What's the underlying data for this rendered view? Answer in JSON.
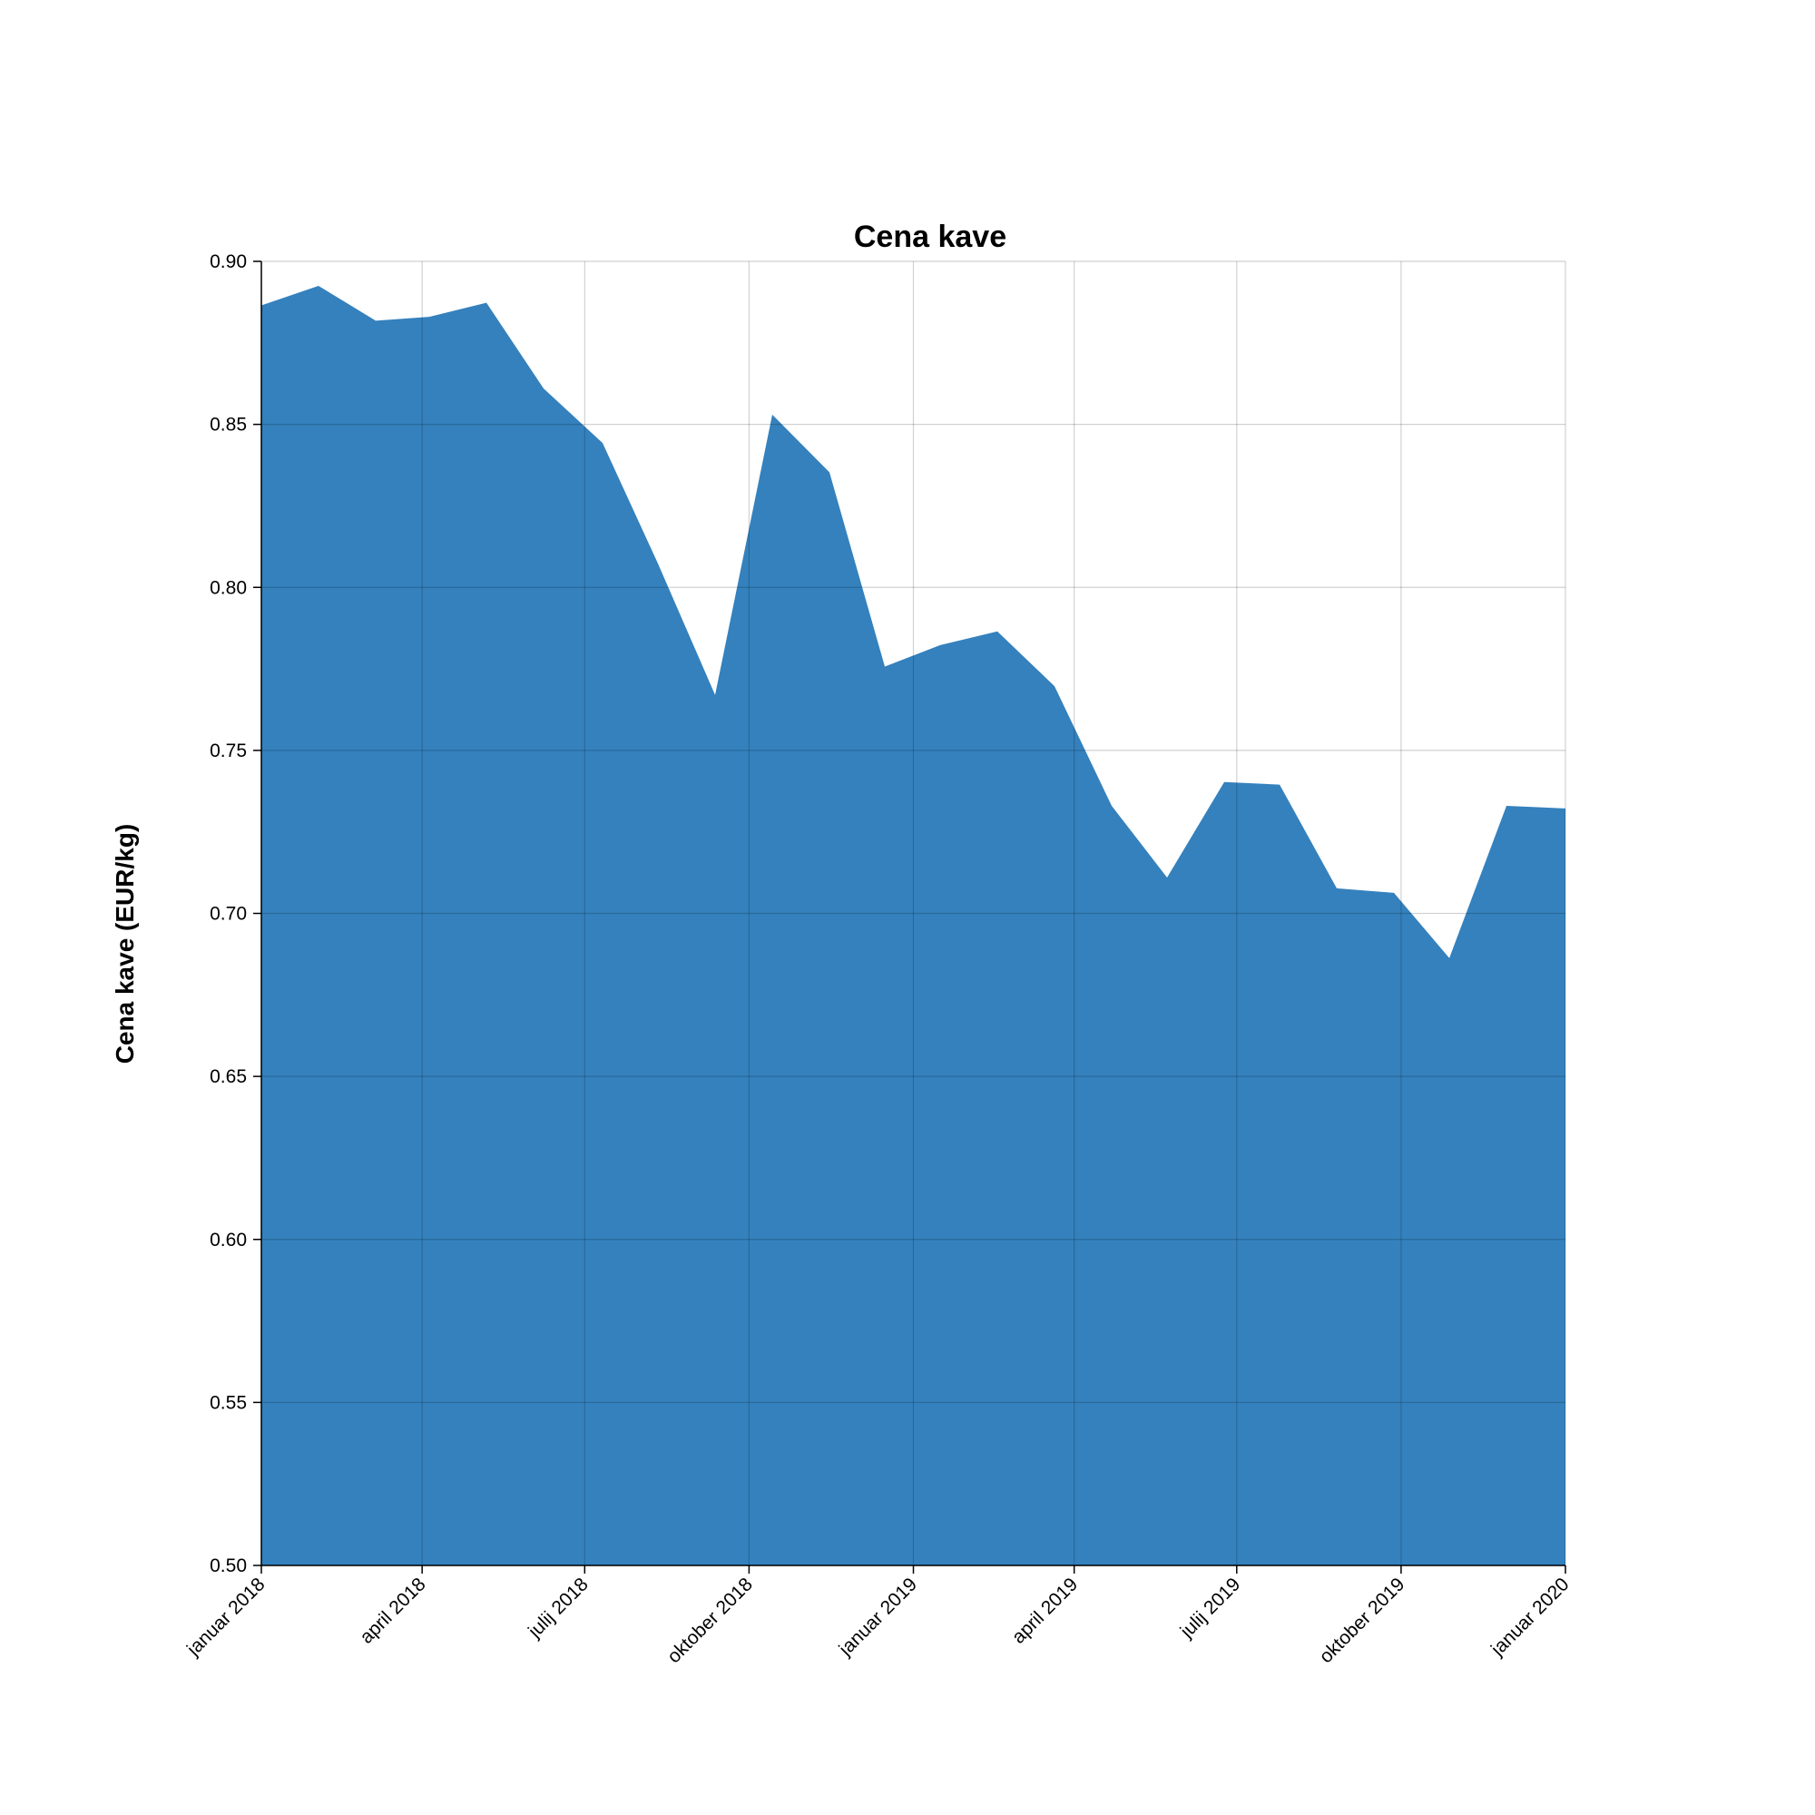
{
  "chart_data": {
    "type": "area",
    "title": "Cena kave",
    "xlabel": "",
    "ylabel": "Cena kave (EUR/kg)",
    "ylim": [
      0.5,
      0.9
    ],
    "xlim": [
      "2018-01-01",
      "2020-01-01"
    ],
    "color": "#3481bd",
    "grid": true,
    "y_ticks": [
      "0.50",
      "0.55",
      "0.60",
      "0.65",
      "0.70",
      "0.75",
      "0.80",
      "0.85",
      "0.90"
    ],
    "x_ticks": [
      {
        "date": "2018-01-01",
        "label": "januar 2018"
      },
      {
        "date": "2018-04-01",
        "label": "april 2018"
      },
      {
        "date": "2018-07-01",
        "label": "julij 2018"
      },
      {
        "date": "2018-10-01",
        "label": "oktober 2018"
      },
      {
        "date": "2019-01-01",
        "label": "januar 2019"
      },
      {
        "date": "2019-04-01",
        "label": "april 2019"
      },
      {
        "date": "2019-07-01",
        "label": "julij 2019"
      },
      {
        "date": "2019-10-01",
        "label": "oktober 2019"
      },
      {
        "date": "2020-01-01",
        "label": "januar 2020"
      }
    ],
    "points": [
      {
        "x": "2018-01-01",
        "y": 0.8865
      },
      {
        "x": "2018-02-02",
        "y": 0.8925
      },
      {
        "x": "2018-03-06",
        "y": 0.8818
      },
      {
        "x": "2018-04-05",
        "y": 0.883
      },
      {
        "x": "2018-05-07",
        "y": 0.8873
      },
      {
        "x": "2018-06-08",
        "y": 0.861
      },
      {
        "x": "2018-07-11",
        "y": 0.8443
      },
      {
        "x": "2018-08-11",
        "y": 0.8073
      },
      {
        "x": "2018-09-12",
        "y": 0.767
      },
      {
        "x": "2018-10-14",
        "y": 0.853
      },
      {
        "x": "2018-11-15",
        "y": 0.8353
      },
      {
        "x": "2018-12-16",
        "y": 0.7757
      },
      {
        "x": "2019-01-16",
        "y": 0.7823
      },
      {
        "x": "2019-02-17",
        "y": 0.7865
      },
      {
        "x": "2019-03-21",
        "y": 0.7697
      },
      {
        "x": "2019-04-22",
        "y": 0.733
      },
      {
        "x": "2019-05-23",
        "y": 0.711
      },
      {
        "x": "2019-06-24",
        "y": 0.7403
      },
      {
        "x": "2019-07-25",
        "y": 0.7395
      },
      {
        "x": "2019-08-26",
        "y": 0.7077
      },
      {
        "x": "2019-09-27",
        "y": 0.7063
      },
      {
        "x": "2019-10-28",
        "y": 0.6863
      },
      {
        "x": "2019-11-29",
        "y": 0.733
      },
      {
        "x": "2020-01-01",
        "y": 0.7322
      }
    ]
  }
}
